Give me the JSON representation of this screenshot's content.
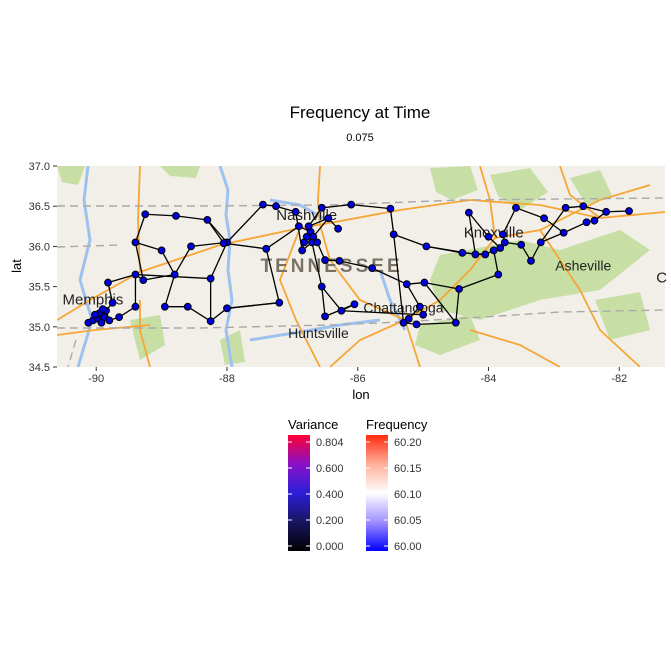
{
  "chart_data": {
    "type": "scatter",
    "title": "Frequency at Time",
    "subtitle": "0.075",
    "xlabel": "lon",
    "ylabel": "lat",
    "xlim": [
      -90.6,
      -81.3
    ],
    "ylim": [
      34.5,
      37.0
    ],
    "x_ticks": [
      -90,
      -88,
      -86,
      -84,
      -82
    ],
    "y_ticks": [
      34.5,
      35.0,
      35.5,
      36.0,
      36.5,
      37.0
    ],
    "x_tick_labels": [
      "-90",
      "-88",
      "-86",
      "-84",
      "-82"
    ],
    "y_tick_labels": [
      "34.5",
      "35.0",
      "35.5",
      "36.0",
      "36.5",
      "37.0"
    ],
    "node_fill": "#0000dd",
    "node_stroke": "#000000",
    "edge_color": "#000000",
    "map_labels": [
      {
        "text": "Memphis",
        "lon": -90.05,
        "lat": 35.28
      },
      {
        "text": "Nashville",
        "lon": -86.78,
        "lat": 36.33
      },
      {
        "text": "TENNESSEE",
        "lon": -86.4,
        "lat": 35.68
      },
      {
        "text": "Knoxville",
        "lon": -83.92,
        "lat": 36.11
      },
      {
        "text": "Asheville",
        "lon": -82.55,
        "lat": 35.7
      },
      {
        "text": "Chattanooga",
        "lon": -85.3,
        "lat": 35.18
      },
      {
        "text": "Huntsville",
        "lon": -86.6,
        "lat": 34.86
      },
      {
        "text": "C",
        "lon": -81.35,
        "lat": 35.55
      }
    ],
    "nodes": [
      [
        -90.12,
        35.05
      ],
      [
        -90.05,
        35.08
      ],
      [
        -89.98,
        35.1
      ],
      [
        -89.92,
        35.05
      ],
      [
        -89.88,
        35.12
      ],
      [
        -89.95,
        35.17
      ],
      [
        -90.02,
        35.15
      ],
      [
        -89.85,
        35.2
      ],
      [
        -89.8,
        35.08
      ],
      [
        -89.75,
        35.3
      ],
      [
        -89.9,
        35.22
      ],
      [
        -89.65,
        35.12
      ],
      [
        -89.82,
        35.55
      ],
      [
        -89.4,
        35.65
      ],
      [
        -89.4,
        35.25
      ],
      [
        -89.28,
        35.58
      ],
      [
        -89.4,
        36.05
      ],
      [
        -89.25,
        36.4
      ],
      [
        -89.0,
        35.95
      ],
      [
        -88.8,
        35.65
      ],
      [
        -88.95,
        35.25
      ],
      [
        -88.6,
        35.25
      ],
      [
        -88.78,
        36.38
      ],
      [
        -88.55,
        36.0
      ],
      [
        -88.3,
        36.33
      ],
      [
        -88.0,
        36.05
      ],
      [
        -88.05,
        36.04
      ],
      [
        -88.25,
        35.6
      ],
      [
        -88.25,
        35.07
      ],
      [
        -88.0,
        35.23
      ],
      [
        -87.45,
        36.52
      ],
      [
        -87.25,
        36.5
      ],
      [
        -87.4,
        35.97
      ],
      [
        -87.2,
        35.3
      ],
      [
        -86.95,
        36.43
      ],
      [
        -86.9,
        36.25
      ],
      [
        -86.85,
        35.95
      ],
      [
        -86.82,
        36.05
      ],
      [
        -86.78,
        36.12
      ],
      [
        -86.72,
        36.18
      ],
      [
        -86.7,
        36.05
      ],
      [
        -86.68,
        36.12
      ],
      [
        -86.75,
        36.25
      ],
      [
        -86.62,
        36.05
      ],
      [
        -86.55,
        36.48
      ],
      [
        -86.45,
        36.35
      ],
      [
        -86.3,
        36.22
      ],
      [
        -86.1,
        36.52
      ],
      [
        -86.55,
        35.5
      ],
      [
        -86.5,
        35.83
      ],
      [
        -86.5,
        35.13
      ],
      [
        -86.28,
        35.82
      ],
      [
        -86.25,
        35.2
      ],
      [
        -86.05,
        35.28
      ],
      [
        -85.78,
        35.73
      ],
      [
        -85.5,
        36.47
      ],
      [
        -85.45,
        36.15
      ],
      [
        -85.25,
        35.53
      ],
      [
        -85.3,
        35.05
      ],
      [
        -85.22,
        35.1
      ],
      [
        -85.1,
        35.03
      ],
      [
        -85.05,
        35.25
      ],
      [
        -85.0,
        35.15
      ],
      [
        -84.98,
        35.55
      ],
      [
        -84.95,
        36.0
      ],
      [
        -84.45,
        35.47
      ],
      [
        -84.5,
        35.05
      ],
      [
        -84.4,
        35.92
      ],
      [
        -84.3,
        36.42
      ],
      [
        -84.2,
        35.9
      ],
      [
        -84.05,
        35.9
      ],
      [
        -84.0,
        36.12
      ],
      [
        -83.92,
        35.95
      ],
      [
        -83.85,
        35.65
      ],
      [
        -83.82,
        35.98
      ],
      [
        -83.75,
        36.05
      ],
      [
        -83.78,
        36.15
      ],
      [
        -83.58,
        36.48
      ],
      [
        -83.5,
        36.02
      ],
      [
        -83.35,
        35.82
      ],
      [
        -83.2,
        36.05
      ],
      [
        -83.15,
        36.35
      ],
      [
        -82.85,
        36.17
      ],
      [
        -82.82,
        36.48
      ],
      [
        -82.55,
        36.5
      ],
      [
        -82.5,
        36.3
      ],
      [
        -82.38,
        36.32
      ],
      [
        -82.2,
        36.43
      ],
      [
        -81.85,
        36.44
      ]
    ],
    "edges": [
      [
        0,
        1
      ],
      [
        1,
        2
      ],
      [
        2,
        3
      ],
      [
        3,
        4
      ],
      [
        4,
        5
      ],
      [
        5,
        6
      ],
      [
        6,
        0
      ],
      [
        2,
        7
      ],
      [
        7,
        8
      ],
      [
        8,
        11
      ],
      [
        5,
        10
      ],
      [
        10,
        7
      ],
      [
        9,
        7
      ],
      [
        9,
        12
      ],
      [
        12,
        13
      ],
      [
        13,
        14
      ],
      [
        14,
        11
      ],
      [
        13,
        15
      ],
      [
        15,
        16
      ],
      [
        16,
        17
      ],
      [
        16,
        18
      ],
      [
        18,
        19
      ],
      [
        19,
        15
      ],
      [
        19,
        20
      ],
      [
        20,
        21
      ],
      [
        17,
        22
      ],
      [
        22,
        24
      ],
      [
        24,
        25
      ],
      [
        23,
        25
      ],
      [
        23,
        19
      ],
      [
        25,
        27
      ],
      [
        27,
        28
      ],
      [
        28,
        21
      ],
      [
        28,
        29
      ],
      [
        29,
        33
      ],
      [
        33,
        32
      ],
      [
        26,
        32
      ],
      [
        32,
        35
      ],
      [
        25,
        30
      ],
      [
        30,
        31
      ],
      [
        31,
        34
      ],
      [
        34,
        36
      ],
      [
        36,
        37
      ],
      [
        37,
        38
      ],
      [
        38,
        39
      ],
      [
        39,
        42
      ],
      [
        42,
        44
      ],
      [
        44,
        47
      ],
      [
        47,
        55
      ],
      [
        55,
        56
      ],
      [
        56,
        64
      ],
      [
        64,
        67
      ],
      [
        41,
        45
      ],
      [
        45,
        46
      ],
      [
        43,
        49
      ],
      [
        49,
        51
      ],
      [
        51,
        54
      ],
      [
        54,
        57
      ],
      [
        57,
        63
      ],
      [
        63,
        65
      ],
      [
        65,
        66
      ],
      [
        66,
        60
      ],
      [
        60,
        58
      ],
      [
        58,
        59
      ],
      [
        59,
        61
      ],
      [
        61,
        62
      ],
      [
        62,
        52
      ],
      [
        52,
        53
      ],
      [
        53,
        50
      ],
      [
        50,
        48
      ],
      [
        48,
        40
      ],
      [
        40,
        36
      ],
      [
        29,
        33
      ],
      [
        56,
        58
      ],
      [
        52,
        48
      ],
      [
        65,
        73
      ],
      [
        73,
        72
      ],
      [
        72,
        70
      ],
      [
        70,
        69
      ],
      [
        69,
        68
      ],
      [
        68,
        71
      ],
      [
        71,
        74
      ],
      [
        74,
        75
      ],
      [
        75,
        76
      ],
      [
        76,
        77
      ],
      [
        77,
        81
      ],
      [
        81,
        82
      ],
      [
        82,
        85
      ],
      [
        85,
        86
      ],
      [
        86,
        87
      ],
      [
        87,
        88
      ],
      [
        83,
        84
      ],
      [
        84,
        87
      ],
      [
        79,
        80
      ],
      [
        80,
        82
      ],
      [
        78,
        79
      ],
      [
        78,
        75
      ],
      [
        80,
        83
      ],
      [
        67,
        70
      ],
      [
        64,
        69
      ],
      [
        57,
        61
      ],
      [
        35,
        39
      ],
      [
        38,
        41
      ],
      [
        43,
        40
      ],
      [
        42,
        45
      ],
      [
        13,
        27
      ],
      [
        26,
        24
      ],
      [
        63,
        66
      ]
    ]
  },
  "legends": {
    "variance": {
      "title": "Variance",
      "ticks": [
        "0.000",
        "0.200",
        "0.400",
        "0.600",
        "0.804"
      ],
      "colors": [
        "#000000",
        "#1a1560",
        "#2a1fd8",
        "#8a10c8",
        "#ff0033"
      ]
    },
    "frequency": {
      "title": "Frequency",
      "ticks": [
        "60.00",
        "60.05",
        "60.10",
        "60.15",
        "60.20"
      ],
      "colors": [
        "#0000ff",
        "#9f8fff",
        "#ffffff",
        "#ffb09a",
        "#ff2a10"
      ]
    }
  },
  "map_colors": {
    "land": "#f2efe9",
    "park": "#c7dfa5",
    "water": "#9dc2f0",
    "highway": "#f7a535",
    "border": "#a9a9a9"
  }
}
